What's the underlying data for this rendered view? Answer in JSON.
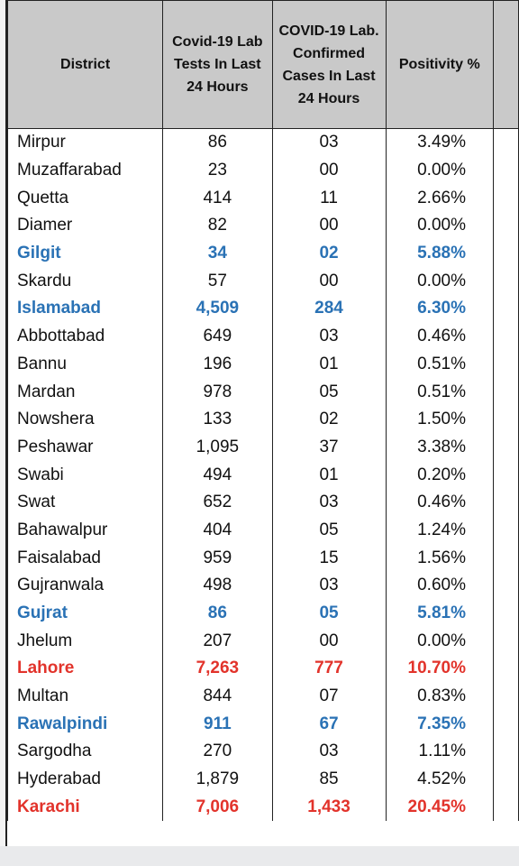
{
  "table": {
    "header": [
      "District",
      "Covid-19 Lab Tests In Last 24 Hours",
      "COVID-19 Lab. Confirmed Cases In Last 24 Hours",
      "Positivity %"
    ],
    "rows": [
      {
        "cells": [
          "Mirpur",
          "86",
          "03",
          "3.49%"
        ]
      },
      {
        "cells": [
          "Muzaffarabad",
          "23",
          "00",
          "0.00%"
        ]
      },
      {
        "cells": [
          "Quetta",
          "414",
          "11",
          "2.66%"
        ]
      },
      {
        "cells": [
          "Diamer",
          "82",
          "00",
          "0.00%"
        ]
      },
      {
        "cells": [
          "Gilgit",
          "34",
          "02",
          "5.88%"
        ],
        "color": "#2a72b5"
      },
      {
        "cells": [
          "Skardu",
          "57",
          "00",
          "0.00%"
        ]
      },
      {
        "cells": [
          "Islamabad",
          "4,509",
          "284",
          "6.30%"
        ],
        "color": "#2a72b5"
      },
      {
        "cells": [
          "Abbottabad",
          "649",
          "03",
          "0.46%"
        ]
      },
      {
        "cells": [
          "Bannu",
          "196",
          "01",
          "0.51%"
        ]
      },
      {
        "cells": [
          "Mardan",
          "978",
          "05",
          "0.51%"
        ]
      },
      {
        "cells": [
          "Nowshera",
          "133",
          "02",
          "1.50%"
        ]
      },
      {
        "cells": [
          "Peshawar",
          "1,095",
          "37",
          "3.38%"
        ]
      },
      {
        "cells": [
          "Swabi",
          "494",
          "01",
          "0.20%"
        ]
      },
      {
        "cells": [
          "Swat",
          "652",
          "03",
          "0.46%"
        ]
      },
      {
        "cells": [
          "Bahawalpur",
          "404",
          "05",
          "1.24%"
        ]
      },
      {
        "cells": [
          "Faisalabad",
          "959",
          "15",
          "1.56%"
        ]
      },
      {
        "cells": [
          "Gujranwala",
          "498",
          "03",
          "0.60%"
        ]
      },
      {
        "cells": [
          "Gujrat",
          "86",
          "05",
          "5.81%"
        ],
        "color": "#2a72b5"
      },
      {
        "cells": [
          "Jhelum",
          "207",
          "00",
          "0.00%"
        ]
      },
      {
        "cells": [
          "Lahore",
          "7,263",
          "777",
          "10.70%"
        ],
        "color": "#e2332b"
      },
      {
        "cells": [
          "Multan",
          "844",
          "07",
          "0.83%"
        ]
      },
      {
        "cells": [
          "Rawalpindi",
          "911",
          "67",
          "7.35%"
        ],
        "color": "#2a72b5"
      },
      {
        "cells": [
          "Sargodha",
          "270",
          "03",
          "1.11%"
        ]
      },
      {
        "cells": [
          "Hyderabad",
          "1,879",
          "85",
          "4.52%"
        ]
      },
      {
        "cells": [
          "Karachi",
          "7,006",
          "1,433",
          "20.45%"
        ],
        "color": "#e2332b"
      }
    ]
  }
}
